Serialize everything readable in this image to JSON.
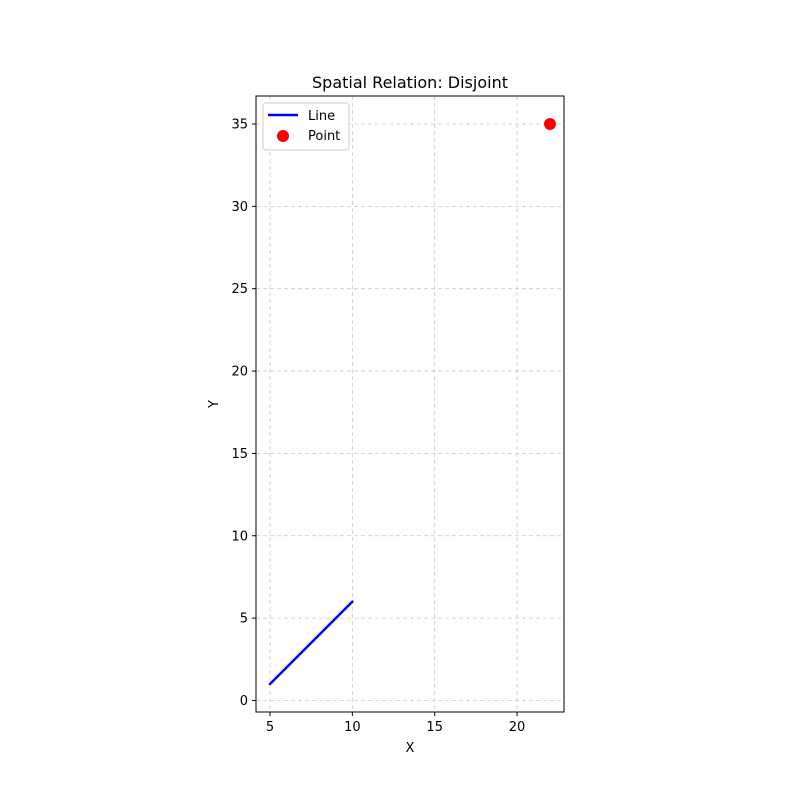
{
  "chart_data": {
    "type": "scatter",
    "title": "Spatial Relation: Disjoint",
    "xlabel": "X",
    "ylabel": "Y",
    "xlim": [
      4.15,
      22.85
    ],
    "ylim": [
      -0.7,
      36.7
    ],
    "xticks": [
      5,
      10,
      15,
      20
    ],
    "yticks": [
      0,
      5,
      10,
      15,
      20,
      25,
      30,
      35
    ],
    "grid": true,
    "grid_style": "dashed",
    "legend_position": "top-left",
    "series": [
      {
        "name": "Line",
        "kind": "line",
        "color": "#0000ff",
        "points": [
          {
            "x": 5,
            "y": 1
          },
          {
            "x": 10,
            "y": 6
          }
        ]
      },
      {
        "name": "Point",
        "kind": "scatter",
        "color": "#ff0000",
        "points": [
          {
            "x": 22,
            "y": 35
          }
        ]
      }
    ]
  }
}
